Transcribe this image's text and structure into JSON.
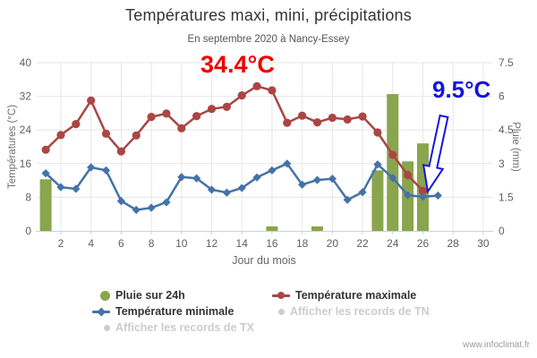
{
  "title": "Températures maxi, mini, précipitations",
  "subtitle": "En septembre 2020 à Nancy-Essey",
  "watermark": "www.infoclimat.fr",
  "annotations": {
    "tx_record": {
      "text": "34.4°C",
      "color": "#ee0000",
      "day": 15
    },
    "tn_record": {
      "text": "9.5°C",
      "color": "#1414e0",
      "day": 26
    }
  },
  "legend": {
    "items": [
      {
        "id": "rain",
        "label": "Pluie sur 24h",
        "marker": "circle",
        "color": "#89A54E",
        "enabled": true
      },
      {
        "id": "tmax",
        "label": "Température maximale",
        "marker": "line-circle",
        "color": "#AA4643",
        "enabled": true
      },
      {
        "id": "tmin",
        "label": "Température minimale",
        "marker": "line-diamond",
        "color": "#4572A7",
        "enabled": true
      },
      {
        "id": "records-tn",
        "label": "Afficher les records de TN",
        "marker": "dot",
        "color": "#cccccc",
        "enabled": false
      },
      {
        "id": "records-tx",
        "label": "Afficher les records de TX",
        "marker": "dot",
        "color": "#cccccc",
        "enabled": false
      }
    ]
  },
  "chart_data": {
    "type": "mixed",
    "title": "Températures maxi, mini, précipitations",
    "subtitle": "En septembre 2020 à Nancy-Essey",
    "xlabel": "Jour du mois",
    "ylabel_left": "Températures (°C)",
    "ylabel_right": "Pluie (mm)",
    "xticks": [
      2,
      4,
      6,
      8,
      10,
      12,
      14,
      16,
      18,
      20,
      22,
      24,
      26,
      28,
      30
    ],
    "yticks_left": [
      0,
      8,
      16,
      24,
      32,
      40
    ],
    "yticks_right": [
      0,
      1.5,
      3,
      4.5,
      6,
      7.5
    ],
    "xlim": [
      0.4,
      30.6
    ],
    "ylim_left": [
      0,
      40
    ],
    "ylim_right": [
      0,
      7.5
    ],
    "grid": true,
    "grid_color": "#e6e6e6",
    "axis_color": "#c6d3e0",
    "tick_label_color": "#606060",
    "legend_position": "bottom",
    "series": [
      {
        "name": "Pluie sur 24h",
        "type": "bar",
        "yaxis": "right",
        "color": "#89A54E",
        "points": [
          {
            "day": 1,
            "mm": 2.3
          },
          {
            "day": 16,
            "mm": 0.2
          },
          {
            "day": 19,
            "mm": 0.2
          },
          {
            "day": 23,
            "mm": 2.7
          },
          {
            "day": 24,
            "mm": 6.1
          },
          {
            "day": 25,
            "mm": 3.1
          },
          {
            "day": 26,
            "mm": 3.9
          }
        ]
      },
      {
        "name": "Température maximale",
        "type": "line",
        "marker": "circle",
        "yaxis": "left",
        "color": "#AA4643",
        "first_day": 1,
        "values": [
          19.3,
          22.8,
          25.4,
          31.0,
          23.1,
          18.9,
          22.7,
          27.1,
          27.9,
          24.4,
          27.3,
          29.0,
          29.5,
          32.2,
          34.4,
          33.4,
          25.7,
          27.4,
          25.8,
          26.9,
          26.5,
          27.2,
          23.4,
          18.1,
          13.3,
          9.5
        ]
      },
      {
        "name": "Température minimale",
        "type": "line",
        "marker": "diamond",
        "yaxis": "left",
        "color": "#4572A7",
        "first_day": 1,
        "values": [
          13.7,
          10.4,
          10.0,
          15.1,
          14.4,
          7.1,
          5.0,
          5.5,
          6.8,
          12.8,
          12.5,
          9.8,
          9.1,
          10.2,
          12.7,
          14.4,
          16.0,
          11.0,
          12.1,
          12.4,
          7.4,
          9.2,
          15.8,
          12.6,
          8.5,
          8.1,
          8.4
        ]
      }
    ]
  }
}
